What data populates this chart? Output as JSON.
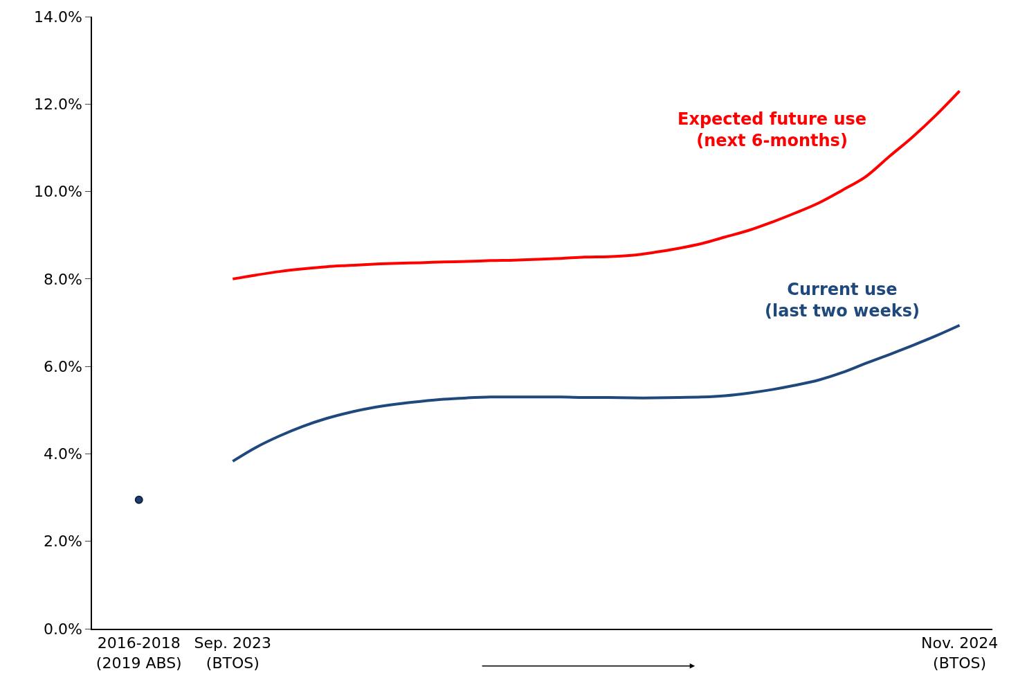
{
  "chart_data": {
    "type": "line",
    "categories": [
      "2016-2018\n(2019 ABS)",
      null,
      null,
      null,
      "Sep. 2023\n(BTOS)",
      null,
      null,
      null,
      null,
      null,
      null,
      null,
      null,
      null,
      null,
      null,
      null,
      null,
      null,
      null,
      null,
      null,
      null,
      null,
      null,
      null,
      null,
      null,
      null,
      null,
      null,
      null,
      null,
      null,
      null,
      "Nov. 2024\n(BTOS)"
    ],
    "series": [
      {
        "name": "Expected future use\n(next 6-months)",
        "color": "#ff0000",
        "values": [
          null,
          null,
          null,
          null,
          8.0,
          8.09,
          8.17,
          8.23,
          8.28,
          8.31,
          8.34,
          8.36,
          8.37,
          8.39,
          8.4,
          8.42,
          8.43,
          8.45,
          8.47,
          8.5,
          8.51,
          8.54,
          8.61,
          8.7,
          8.81,
          8.96,
          9.11,
          9.3,
          9.51,
          9.74,
          10.03,
          10.34,
          10.8,
          11.25,
          11.75,
          12.3
        ]
      },
      {
        "name": "Current use\n(last two weeks)",
        "color": "#1f497d",
        "values": [
          null,
          null,
          null,
          null,
          3.83,
          4.15,
          4.41,
          4.63,
          4.81,
          4.95,
          5.06,
          5.14,
          5.2,
          5.25,
          5.28,
          5.3,
          5.3,
          5.3,
          5.3,
          5.29,
          5.29,
          5.28,
          5.28,
          5.29,
          5.3,
          5.33,
          5.39,
          5.47,
          5.57,
          5.69,
          5.86,
          6.07,
          6.27,
          6.48,
          6.7,
          6.94
        ]
      },
      {
        "type": "scatter",
        "color": "#1f3d6e",
        "values": [
          2.95,
          null,
          null,
          null,
          null,
          null,
          null,
          null,
          null,
          null,
          null,
          null,
          null,
          null,
          null,
          null,
          null,
          null,
          null,
          null,
          null,
          null,
          null,
          null,
          null,
          null,
          null,
          null,
          null,
          null,
          null,
          null,
          null,
          null,
          null,
          null
        ]
      }
    ],
    "ylim": [
      0,
      14
    ],
    "yticks": [
      {
        "value": 0,
        "label": "0.0%"
      },
      {
        "value": 2,
        "label": "2.0%"
      },
      {
        "value": 4,
        "label": "4.0%"
      },
      {
        "value": 6,
        "label": "6.0%"
      },
      {
        "value": 8,
        "label": "8.0%"
      },
      {
        "value": 10,
        "label": "10.0%"
      },
      {
        "value": 12,
        "label": "12.0%"
      },
      {
        "value": 14,
        "label": "14.0%"
      }
    ],
    "line_style": "solid"
  }
}
